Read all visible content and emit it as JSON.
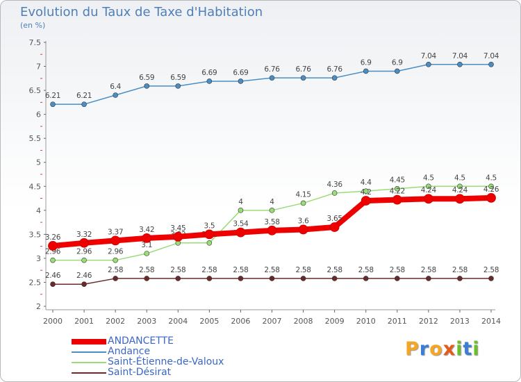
{
  "page": {
    "title": "Evolution du Taux de Taxe d'Habitation",
    "unit_note": "(en %)",
    "brand": "Proxiti",
    "brand_colors": [
      "#f5a623",
      "#3a7fd5",
      "#f5a623",
      "#e85a1a",
      "#6cbf2c",
      "#3a7fd5",
      "#6cbf2c"
    ]
  },
  "chart_data": {
    "type": "line",
    "title": "Evolution du Taux de Taxe d'Habitation",
    "ylabel": "(en %)",
    "xlabel": "",
    "ylim": [
      2,
      7.5
    ],
    "yticks": [
      "2",
      "2.5",
      "3",
      "3.5",
      "4",
      "4.5",
      "5",
      "5.5",
      "6",
      "6.5",
      "7",
      "7.5"
    ],
    "categories": [
      "2000",
      "2001",
      "2002",
      "2003",
      "2004",
      "2005",
      "2006",
      "2007",
      "2008",
      "2009",
      "2010",
      "2011",
      "2012",
      "2013",
      "2014"
    ],
    "legend_position": "bottom-left",
    "grid": false,
    "series": [
      {
        "name": "Andance",
        "color": "#4a8ec4",
        "values": [
          6.21,
          6.21,
          6.4,
          6.59,
          6.59,
          6.69,
          6.69,
          6.76,
          6.76,
          6.76,
          6.9,
          6.9,
          7.04,
          7.04,
          7.04
        ],
        "labels": [
          "6.21",
          "6.21",
          "6.4",
          "6.59",
          "6.59",
          "6.69",
          "6.69",
          "6.76",
          "6.76",
          "6.76",
          "6.9",
          "6.9",
          "7.04",
          "7.04",
          "7.04"
        ]
      },
      {
        "name": "Saint-Étienne-de-Valoux",
        "color": "#99dd77",
        "values": [
          2.96,
          2.96,
          2.96,
          3.1,
          3.32,
          3.32,
          4,
          4,
          4.15,
          4.36,
          4.4,
          4.45,
          4.5,
          4.5,
          4.5
        ],
        "labels": [
          "2.96",
          "2.96",
          "2.96",
          "3.1",
          "3.32",
          "3.32",
          "4",
          "4",
          "4.15",
          "4.36",
          "4.4",
          "4.45",
          "4.5",
          "4.5",
          "4.5"
        ]
      },
      {
        "name": "Saint-Désirat",
        "color": "#6b2a2a",
        "values": [
          2.46,
          2.46,
          2.58,
          2.58,
          2.58,
          2.58,
          2.58,
          2.58,
          2.58,
          2.58,
          2.58,
          2.58,
          2.58,
          2.58,
          2.58
        ],
        "labels": [
          "2.46",
          "2.46",
          "2.58",
          "2.58",
          "2.58",
          "2.58",
          "2.58",
          "2.58",
          "2.58",
          "2.58",
          "2.58",
          "2.58",
          "2.58",
          "2.58",
          "2.58"
        ]
      },
      {
        "name": "ANDANCETTE",
        "color": "#ee0000",
        "values": [
          3.26,
          3.32,
          3.37,
          3.42,
          3.45,
          3.5,
          3.54,
          3.58,
          3.6,
          3.65,
          4.2,
          4.22,
          4.24,
          4.24,
          4.26
        ],
        "labels": [
          "3.26",
          "3.32",
          "3.37",
          "3.42",
          "3.45",
          "3.5",
          "3.54",
          "3.58",
          "3.6",
          "3.65",
          "4.2",
          "4.22",
          "4.24",
          "4.24",
          "4.26"
        ]
      }
    ],
    "legend": [
      "ANDANCETTE",
      "Andance",
      "Saint-Étienne-de-Valoux",
      "Saint-Désirat"
    ]
  }
}
